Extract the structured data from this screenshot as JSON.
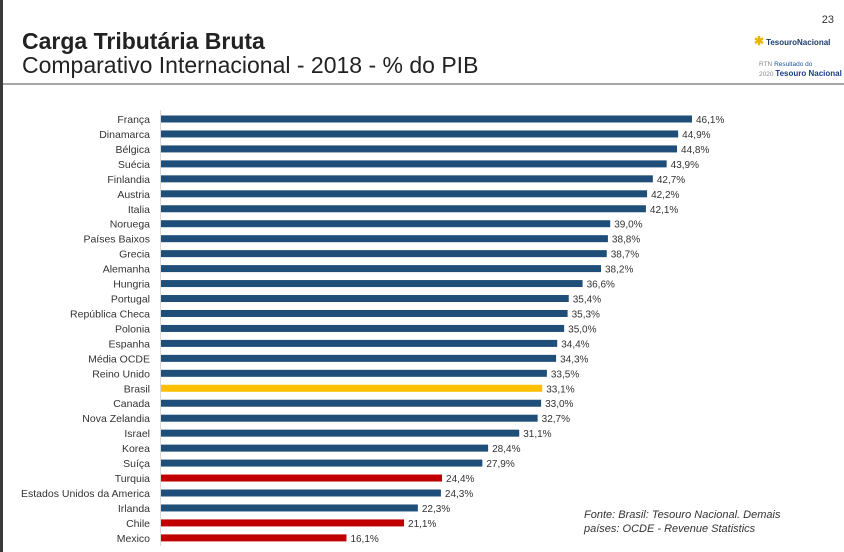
{
  "header": {
    "title": "Carga Tributária Bruta",
    "subtitle": "Comparativo Internacional - 2018 - % do PIB",
    "page_number": "23",
    "logo_text": "TesouroNacional",
    "rtn_line1_a": "RTN",
    "rtn_line1_b": "Resultado do",
    "rtn_line2_a": "2020",
    "rtn_line2_b": "Tesouro Nacional"
  },
  "note": {
    "line1": "Fonte: Brasil: Tesouro Nacional. Demais",
    "line2": "países: OCDE - Revenue Statistics"
  },
  "colors": {
    "default": "#1f4e79",
    "highlight": "#ffc000",
    "low": "#c00000"
  },
  "chart_data": {
    "type": "bar",
    "orientation": "horizontal",
    "title": "Carga Tributária Bruta - 2018 - % do PIB",
    "xlim": [
      0,
      46.1
    ],
    "categories": [
      "França",
      "Dinamarca",
      "Bélgica",
      "Suécia",
      "Finlandia",
      "Austria",
      "Italia",
      "Noruega",
      "Países Baixos",
      "Grecia",
      "Alemanha",
      "Hungria",
      "Portugal",
      "República Checa",
      "Polonia",
      "Espanha",
      "Média OCDE",
      "Reino Unido",
      "Brasil",
      "Canada",
      "Nova Zelandia",
      "Israel",
      "Korea",
      "Suíça",
      "Turquia",
      "Estados Unidos da America",
      "Irlanda",
      "Chile",
      "Mexico"
    ],
    "values": [
      46.1,
      44.9,
      44.8,
      43.9,
      42.7,
      42.2,
      42.1,
      39.0,
      38.8,
      38.7,
      38.2,
      36.6,
      35.4,
      35.3,
      35.0,
      34.4,
      34.3,
      33.5,
      33.1,
      33.0,
      32.7,
      31.1,
      28.4,
      27.9,
      24.4,
      24.3,
      22.3,
      21.1,
      16.1
    ],
    "labels": [
      "46,1%",
      "44,9%",
      "44,8%",
      "43,9%",
      "42,7%",
      "42,2%",
      "42,1%",
      "39,0%",
      "38,8%",
      "38,7%",
      "38,2%",
      "36,6%",
      "35,4%",
      "35,3%",
      "35,0%",
      "34,4%",
      "34,3%",
      "33,5%",
      "33,1%",
      "33,0%",
      "32,7%",
      "31,1%",
      "28,4%",
      "27,9%",
      "24,4%",
      "24,3%",
      "22,3%",
      "21,1%",
      "16,1%"
    ],
    "color_group": [
      "default",
      "default",
      "default",
      "default",
      "default",
      "default",
      "default",
      "default",
      "default",
      "default",
      "default",
      "default",
      "default",
      "default",
      "default",
      "default",
      "default",
      "default",
      "highlight",
      "default",
      "default",
      "default",
      "default",
      "default",
      "low",
      "default",
      "default",
      "low",
      "low"
    ]
  }
}
